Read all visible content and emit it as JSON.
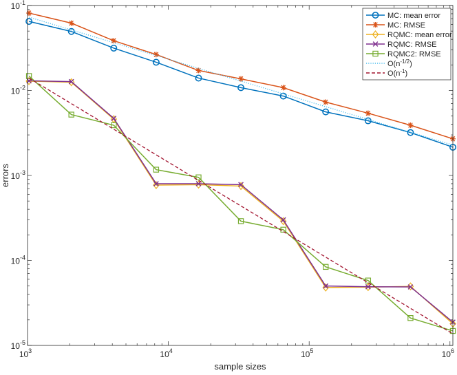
{
  "chart_data": {
    "type": "line",
    "title": "",
    "xlabel": "sample sizes",
    "ylabel": "errors",
    "xscale": "log",
    "yscale": "log",
    "xlim": [
      1000,
      1048576
    ],
    "ylim": [
      1e-05,
      0.1
    ],
    "x": [
      1024,
      2048,
      4096,
      8192,
      16384,
      32768,
      65536,
      131072,
      262144,
      524288,
      1048576
    ],
    "xticks": [
      {
        "base": "10",
        "exp": "3"
      },
      {
        "base": "10",
        "exp": "4"
      },
      {
        "base": "10",
        "exp": "5"
      },
      {
        "base": "10",
        "exp": "6"
      }
    ],
    "yticks": [
      {
        "base": "10",
        "exp": "-5"
      },
      {
        "base": "10",
        "exp": "-4"
      },
      {
        "base": "10",
        "exp": "-3"
      },
      {
        "base": "10",
        "exp": "-2"
      },
      {
        "base": "10",
        "exp": "-1"
      }
    ],
    "legend_position": "top-right",
    "series": [
      {
        "name": "MC: mean error",
        "color": "#0072BD",
        "marker": "circle",
        "dash": "solid",
        "values": [
          0.065,
          0.0495,
          0.0315,
          0.0215,
          0.014,
          0.0108,
          0.0086,
          0.0056,
          0.0044,
          0.0032,
          0.00215
        ]
      },
      {
        "name": "MC: RMSE",
        "color": "#D95319",
        "marker": "asterisk",
        "dash": "solid",
        "values": [
          0.0815,
          0.062,
          0.0385,
          0.0265,
          0.0172,
          0.0137,
          0.0108,
          0.0073,
          0.0054,
          0.0039,
          0.0027
        ]
      },
      {
        "name": "RQMC: mean error",
        "color": "#EDB120",
        "marker": "diamond",
        "dash": "solid",
        "values": [
          0.0129,
          0.0125,
          0.0046,
          0.00077,
          0.00078,
          0.00075,
          0.00029,
          4.8e-05,
          4.85e-05,
          4.95e-05,
          1.8e-05
        ]
      },
      {
        "name": "RQMC: RMSE",
        "color": "#7E2F8E",
        "marker": "x",
        "dash": "solid",
        "values": [
          0.013,
          0.0127,
          0.0047,
          0.0008,
          0.0008,
          0.00078,
          0.0003,
          5e-05,
          4.9e-05,
          4.88e-05,
          1.88e-05
        ]
      },
      {
        "name": "RQMC2: RMSE",
        "color": "#77AC30",
        "marker": "square",
        "dash": "solid",
        "values": [
          0.0148,
          0.0052,
          0.0039,
          0.00117,
          0.00095,
          0.00029,
          0.00023,
          8.4e-05,
          5.8e-05,
          2.1e-05,
          1.48e-05
        ]
      },
      {
        "name": "O(n^{-1/2})",
        "legend_prefix": "O(n",
        "legend_exp": "-1/2",
        "legend_suffix": ")",
        "color": "#4DBEEE",
        "marker": "none",
        "dash": "dotted",
        "values": [
          0.073,
          0.0516,
          0.0365,
          0.0258,
          0.0182,
          0.0129,
          0.00912,
          0.00645,
          0.00456,
          0.00322,
          0.00228
        ]
      },
      {
        "name": "O(n^{-1})",
        "legend_prefix": "O(n",
        "legend_exp": "-1",
        "legend_suffix": ")",
        "color": "#A2142F",
        "marker": "none",
        "dash": "dashed",
        "values": [
          0.014,
          0.007,
          0.0035,
          0.00175,
          0.000875,
          0.000438,
          0.000219,
          0.0001094,
          5.47e-05,
          2.73e-05,
          1.37e-05
        ]
      }
    ]
  }
}
